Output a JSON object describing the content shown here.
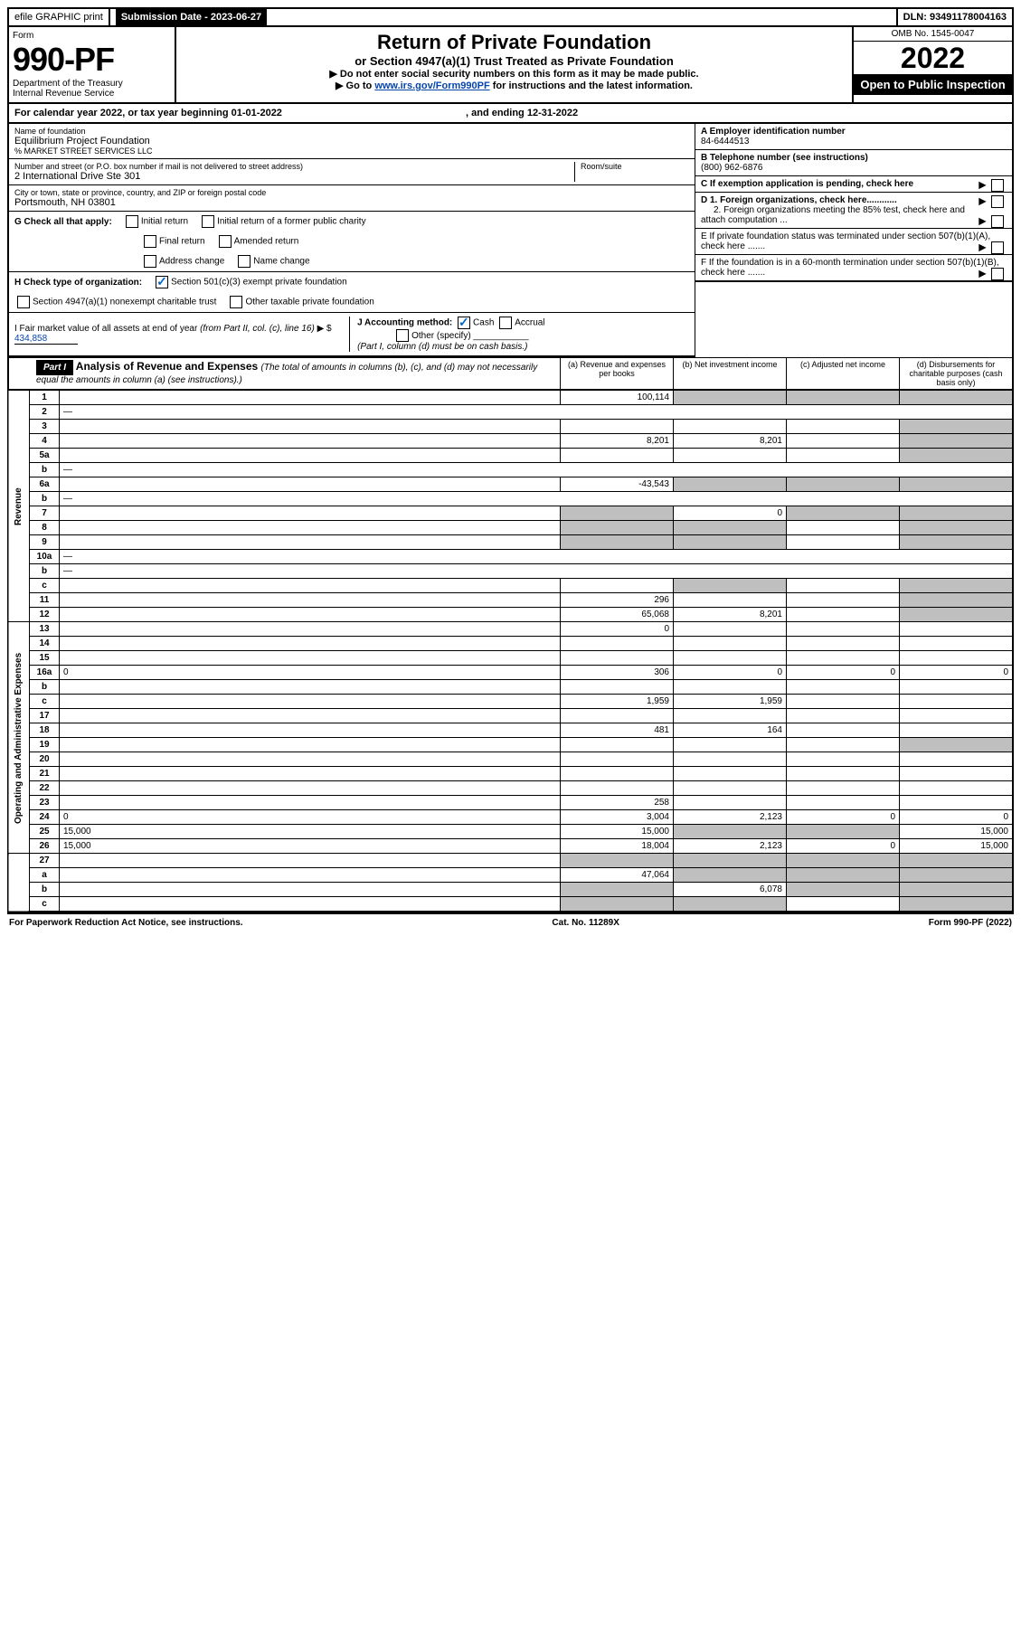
{
  "top": {
    "efile": "efile GRAPHIC print",
    "submission": "Submission Date - 2023-06-27",
    "dln": "DLN: 93491178004163"
  },
  "header": {
    "form_label": "Form",
    "form_no": "990-PF",
    "dept": "Department of the Treasury",
    "irs": "Internal Revenue Service",
    "title": "Return of Private Foundation",
    "subtitle": "or Section 4947(a)(1) Trust Treated as Private Foundation",
    "note1": "▶ Do not enter social security numbers on this form as it may be made public.",
    "note2_pre": "▶ Go to ",
    "note2_link": "www.irs.gov/Form990PF",
    "note2_post": " for instructions and the latest information.",
    "omb": "OMB No. 1545-0047",
    "year": "2022",
    "inspection": "Open to Public Inspection"
  },
  "calendar": {
    "text_pre": "For calendar year 2022, or tax year beginning ",
    "begin": "01-01-2022",
    "mid": " , and ending ",
    "end": "12-31-2022"
  },
  "name_block": {
    "label": "Name of foundation",
    "name": "Equilibrium Project Foundation",
    "care_of": "% MARKET STREET SERVICES LLC",
    "addr_label": "Number and street (or P.O. box number if mail is not delivered to street address)",
    "addr": "2 International Drive Ste 301",
    "room_label": "Room/suite",
    "city_label": "City or town, state or province, country, and ZIP or foreign postal code",
    "city": "Portsmouth, NH  03801"
  },
  "right_block": {
    "a_label": "A Employer identification number",
    "a_val": "84-6444513",
    "b_label": "B Telephone number (see instructions)",
    "b_val": "(800) 962-6876",
    "c_label": "C If exemption application is pending, check here",
    "d1": "D 1. Foreign organizations, check here............",
    "d2": "2. Foreign organizations meeting the 85% test, check here and attach computation ...",
    "e": "E  If private foundation status was terminated under section 507(b)(1)(A), check here .......",
    "f": "F  If the foundation is in a 60-month termination under section 507(b)(1)(B), check here .......",
    "arrow": "▶"
  },
  "g": {
    "label": "G Check all that apply:",
    "initial": "Initial return",
    "initial_former": "Initial return of a former public charity",
    "final": "Final return",
    "amended": "Amended return",
    "address": "Address change",
    "name_change": "Name change"
  },
  "h": {
    "label": "H Check type of organization:",
    "s501": "Section 501(c)(3) exempt private foundation",
    "s4947": "Section 4947(a)(1) nonexempt charitable trust",
    "other_tax": "Other taxable private foundation"
  },
  "i": {
    "label_pre": "I Fair market value of all assets at end of year ",
    "label_mid": "(from Part II, col. (c), line 16)",
    "arrow": "▶ $",
    "val": "434,858"
  },
  "j": {
    "label": "J Accounting method:",
    "cash": "Cash",
    "accrual": "Accrual",
    "other": "Other (specify)",
    "note": "(Part I, column (d) must be on cash basis.)"
  },
  "part1": {
    "label": "Part I",
    "title": "Analysis of Revenue and Expenses ",
    "note": "(The total of amounts in columns (b), (c), and (d) may not necessarily equal the amounts in column (a) (see instructions).)",
    "col_a": "(a)  Revenue and expenses per books",
    "col_b": "(b)  Net investment income",
    "col_c": "(c)  Adjusted net income",
    "col_d": "(d)  Disbursements for charitable purposes (cash basis only)"
  },
  "side": {
    "revenue": "Revenue",
    "expenses": "Operating and Administrative Expenses"
  },
  "rows": [
    {
      "n": "1",
      "d": "",
      "a": "100,114",
      "b": "",
      "c": "",
      "sb": true,
      "sc": true,
      "sd": true
    },
    {
      "n": "2",
      "d": "—",
      "a": "—",
      "b": "—",
      "c": "—",
      "merge": true
    },
    {
      "n": "3",
      "d": "",
      "a": "",
      "b": "",
      "c": "",
      "sd": true
    },
    {
      "n": "4",
      "d": "",
      "a": "8,201",
      "b": "8,201",
      "c": "",
      "sd": true
    },
    {
      "n": "5a",
      "d": "",
      "a": "",
      "b": "",
      "c": "",
      "sd": true
    },
    {
      "n": "b",
      "d": "—",
      "a": "—",
      "b": "—",
      "c": "—",
      "merge": true
    },
    {
      "n": "6a",
      "d": "",
      "a": "-43,543",
      "b": "",
      "c": "",
      "sb": true,
      "sc": true,
      "sd": true
    },
    {
      "n": "b",
      "d": "—",
      "a": "—",
      "b": "—",
      "c": "—",
      "merge": true
    },
    {
      "n": "7",
      "d": "",
      "a": "",
      "b": "0",
      "c": "",
      "sa": true,
      "sc": true,
      "sd": true
    },
    {
      "n": "8",
      "d": "",
      "a": "",
      "b": "",
      "c": "",
      "sa": true,
      "sb": true,
      "sd": true
    },
    {
      "n": "9",
      "d": "",
      "a": "",
      "b": "",
      "c": "",
      "sa": true,
      "sb": true,
      "sd": true
    },
    {
      "n": "10a",
      "d": "—",
      "a": "—",
      "b": "—",
      "c": "—",
      "merge": true
    },
    {
      "n": "b",
      "d": "—",
      "a": "—",
      "b": "—",
      "c": "—",
      "merge": true
    },
    {
      "n": "c",
      "d": "",
      "a": "",
      "b": "",
      "c": "",
      "sb": true,
      "sd": true
    },
    {
      "n": "11",
      "d": "",
      "a": "296",
      "b": "",
      "c": "",
      "sd": true
    },
    {
      "n": "12",
      "d": "",
      "a": "65,068",
      "b": "8,201",
      "c": "",
      "sd": true
    }
  ],
  "exp_rows": [
    {
      "n": "13",
      "d": "",
      "a": "0",
      "b": "",
      "c": ""
    },
    {
      "n": "14",
      "d": "",
      "a": "",
      "b": "",
      "c": ""
    },
    {
      "n": "15",
      "d": "",
      "a": "",
      "b": "",
      "c": ""
    },
    {
      "n": "16a",
      "d": "0",
      "a": "306",
      "b": "0",
      "c": "0"
    },
    {
      "n": "b",
      "d": "",
      "a": "",
      "b": "",
      "c": ""
    },
    {
      "n": "c",
      "d": "",
      "a": "1,959",
      "b": "1,959",
      "c": ""
    },
    {
      "n": "17",
      "d": "",
      "a": "",
      "b": "",
      "c": ""
    },
    {
      "n": "18",
      "d": "",
      "a": "481",
      "b": "164",
      "c": ""
    },
    {
      "n": "19",
      "d": "",
      "a": "",
      "b": "",
      "c": "",
      "sd": true
    },
    {
      "n": "20",
      "d": "",
      "a": "",
      "b": "",
      "c": ""
    },
    {
      "n": "21",
      "d": "",
      "a": "",
      "b": "",
      "c": ""
    },
    {
      "n": "22",
      "d": "",
      "a": "",
      "b": "",
      "c": ""
    },
    {
      "n": "23",
      "d": "",
      "a": "258",
      "b": "",
      "c": ""
    },
    {
      "n": "24",
      "d": "0",
      "a": "3,004",
      "b": "2,123",
      "c": "0"
    },
    {
      "n": "25",
      "d": "15,000",
      "a": "15,000",
      "b": "",
      "c": "",
      "sb": true,
      "sc": true
    },
    {
      "n": "26",
      "d": "15,000",
      "a": "18,004",
      "b": "2,123",
      "c": "0"
    }
  ],
  "bottom_rows": [
    {
      "n": "27",
      "d": "",
      "a": "",
      "b": "",
      "c": "",
      "sa": true,
      "sb": true,
      "sc": true,
      "sd": true
    },
    {
      "n": "a",
      "d": "",
      "a": "47,064",
      "b": "",
      "c": "",
      "sb": true,
      "sc": true,
      "sd": true
    },
    {
      "n": "b",
      "d": "",
      "a": "",
      "b": "6,078",
      "c": "",
      "sa": true,
      "sc": true,
      "sd": true
    },
    {
      "n": "c",
      "d": "",
      "a": "",
      "b": "",
      "c": "",
      "sa": true,
      "sb": true,
      "sd": true
    }
  ],
  "footer": {
    "left": "For Paperwork Reduction Act Notice, see instructions.",
    "mid": "Cat. No. 11289X",
    "right": "Form 990-PF (2022)"
  }
}
